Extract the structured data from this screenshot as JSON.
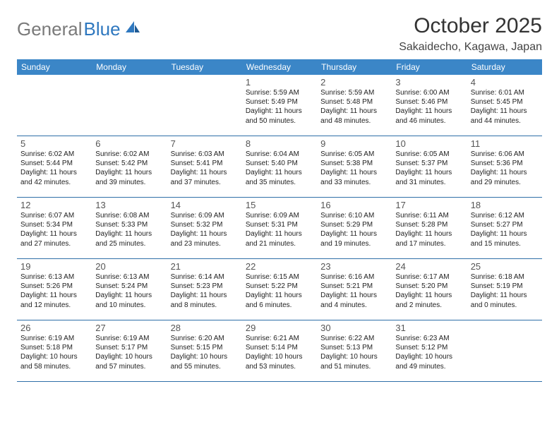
{
  "logo": {
    "text1": "General",
    "text2": "Blue"
  },
  "title": "October 2025",
  "location": "Sakaidecho, Kagawa, Japan",
  "dayNames": [
    "Sunday",
    "Monday",
    "Tuesday",
    "Wednesday",
    "Thursday",
    "Friday",
    "Saturday"
  ],
  "colors": {
    "headerBg": "#3b86c7",
    "headerText": "#ffffff",
    "weekBorder": "#2f6fa8",
    "logoGray": "#7a7a7a",
    "logoBlue": "#2f78bf"
  },
  "weeks": [
    [
      {
        "num": "",
        "sunrise": "",
        "sunset": "",
        "daylight1": "",
        "daylight2": ""
      },
      {
        "num": "",
        "sunrise": "",
        "sunset": "",
        "daylight1": "",
        "daylight2": ""
      },
      {
        "num": "",
        "sunrise": "",
        "sunset": "",
        "daylight1": "",
        "daylight2": ""
      },
      {
        "num": "1",
        "sunrise": "Sunrise: 5:59 AM",
        "sunset": "Sunset: 5:49 PM",
        "daylight1": "Daylight: 11 hours",
        "daylight2": "and 50 minutes."
      },
      {
        "num": "2",
        "sunrise": "Sunrise: 5:59 AM",
        "sunset": "Sunset: 5:48 PM",
        "daylight1": "Daylight: 11 hours",
        "daylight2": "and 48 minutes."
      },
      {
        "num": "3",
        "sunrise": "Sunrise: 6:00 AM",
        "sunset": "Sunset: 5:46 PM",
        "daylight1": "Daylight: 11 hours",
        "daylight2": "and 46 minutes."
      },
      {
        "num": "4",
        "sunrise": "Sunrise: 6:01 AM",
        "sunset": "Sunset: 5:45 PM",
        "daylight1": "Daylight: 11 hours",
        "daylight2": "and 44 minutes."
      }
    ],
    [
      {
        "num": "5",
        "sunrise": "Sunrise: 6:02 AM",
        "sunset": "Sunset: 5:44 PM",
        "daylight1": "Daylight: 11 hours",
        "daylight2": "and 42 minutes."
      },
      {
        "num": "6",
        "sunrise": "Sunrise: 6:02 AM",
        "sunset": "Sunset: 5:42 PM",
        "daylight1": "Daylight: 11 hours",
        "daylight2": "and 39 minutes."
      },
      {
        "num": "7",
        "sunrise": "Sunrise: 6:03 AM",
        "sunset": "Sunset: 5:41 PM",
        "daylight1": "Daylight: 11 hours",
        "daylight2": "and 37 minutes."
      },
      {
        "num": "8",
        "sunrise": "Sunrise: 6:04 AM",
        "sunset": "Sunset: 5:40 PM",
        "daylight1": "Daylight: 11 hours",
        "daylight2": "and 35 minutes."
      },
      {
        "num": "9",
        "sunrise": "Sunrise: 6:05 AM",
        "sunset": "Sunset: 5:38 PM",
        "daylight1": "Daylight: 11 hours",
        "daylight2": "and 33 minutes."
      },
      {
        "num": "10",
        "sunrise": "Sunrise: 6:05 AM",
        "sunset": "Sunset: 5:37 PM",
        "daylight1": "Daylight: 11 hours",
        "daylight2": "and 31 minutes."
      },
      {
        "num": "11",
        "sunrise": "Sunrise: 6:06 AM",
        "sunset": "Sunset: 5:36 PM",
        "daylight1": "Daylight: 11 hours",
        "daylight2": "and 29 minutes."
      }
    ],
    [
      {
        "num": "12",
        "sunrise": "Sunrise: 6:07 AM",
        "sunset": "Sunset: 5:34 PM",
        "daylight1": "Daylight: 11 hours",
        "daylight2": "and 27 minutes."
      },
      {
        "num": "13",
        "sunrise": "Sunrise: 6:08 AM",
        "sunset": "Sunset: 5:33 PM",
        "daylight1": "Daylight: 11 hours",
        "daylight2": "and 25 minutes."
      },
      {
        "num": "14",
        "sunrise": "Sunrise: 6:09 AM",
        "sunset": "Sunset: 5:32 PM",
        "daylight1": "Daylight: 11 hours",
        "daylight2": "and 23 minutes."
      },
      {
        "num": "15",
        "sunrise": "Sunrise: 6:09 AM",
        "sunset": "Sunset: 5:31 PM",
        "daylight1": "Daylight: 11 hours",
        "daylight2": "and 21 minutes."
      },
      {
        "num": "16",
        "sunrise": "Sunrise: 6:10 AM",
        "sunset": "Sunset: 5:29 PM",
        "daylight1": "Daylight: 11 hours",
        "daylight2": "and 19 minutes."
      },
      {
        "num": "17",
        "sunrise": "Sunrise: 6:11 AM",
        "sunset": "Sunset: 5:28 PM",
        "daylight1": "Daylight: 11 hours",
        "daylight2": "and 17 minutes."
      },
      {
        "num": "18",
        "sunrise": "Sunrise: 6:12 AM",
        "sunset": "Sunset: 5:27 PM",
        "daylight1": "Daylight: 11 hours",
        "daylight2": "and 15 minutes."
      }
    ],
    [
      {
        "num": "19",
        "sunrise": "Sunrise: 6:13 AM",
        "sunset": "Sunset: 5:26 PM",
        "daylight1": "Daylight: 11 hours",
        "daylight2": "and 12 minutes."
      },
      {
        "num": "20",
        "sunrise": "Sunrise: 6:13 AM",
        "sunset": "Sunset: 5:24 PM",
        "daylight1": "Daylight: 11 hours",
        "daylight2": "and 10 minutes."
      },
      {
        "num": "21",
        "sunrise": "Sunrise: 6:14 AM",
        "sunset": "Sunset: 5:23 PM",
        "daylight1": "Daylight: 11 hours",
        "daylight2": "and 8 minutes."
      },
      {
        "num": "22",
        "sunrise": "Sunrise: 6:15 AM",
        "sunset": "Sunset: 5:22 PM",
        "daylight1": "Daylight: 11 hours",
        "daylight2": "and 6 minutes."
      },
      {
        "num": "23",
        "sunrise": "Sunrise: 6:16 AM",
        "sunset": "Sunset: 5:21 PM",
        "daylight1": "Daylight: 11 hours",
        "daylight2": "and 4 minutes."
      },
      {
        "num": "24",
        "sunrise": "Sunrise: 6:17 AM",
        "sunset": "Sunset: 5:20 PM",
        "daylight1": "Daylight: 11 hours",
        "daylight2": "and 2 minutes."
      },
      {
        "num": "25",
        "sunrise": "Sunrise: 6:18 AM",
        "sunset": "Sunset: 5:19 PM",
        "daylight1": "Daylight: 11 hours",
        "daylight2": "and 0 minutes."
      }
    ],
    [
      {
        "num": "26",
        "sunrise": "Sunrise: 6:19 AM",
        "sunset": "Sunset: 5:18 PM",
        "daylight1": "Daylight: 10 hours",
        "daylight2": "and 58 minutes."
      },
      {
        "num": "27",
        "sunrise": "Sunrise: 6:19 AM",
        "sunset": "Sunset: 5:17 PM",
        "daylight1": "Daylight: 10 hours",
        "daylight2": "and 57 minutes."
      },
      {
        "num": "28",
        "sunrise": "Sunrise: 6:20 AM",
        "sunset": "Sunset: 5:15 PM",
        "daylight1": "Daylight: 10 hours",
        "daylight2": "and 55 minutes."
      },
      {
        "num": "29",
        "sunrise": "Sunrise: 6:21 AM",
        "sunset": "Sunset: 5:14 PM",
        "daylight1": "Daylight: 10 hours",
        "daylight2": "and 53 minutes."
      },
      {
        "num": "30",
        "sunrise": "Sunrise: 6:22 AM",
        "sunset": "Sunset: 5:13 PM",
        "daylight1": "Daylight: 10 hours",
        "daylight2": "and 51 minutes."
      },
      {
        "num": "31",
        "sunrise": "Sunrise: 6:23 AM",
        "sunset": "Sunset: 5:12 PM",
        "daylight1": "Daylight: 10 hours",
        "daylight2": "and 49 minutes."
      },
      {
        "num": "",
        "sunrise": "",
        "sunset": "",
        "daylight1": "",
        "daylight2": ""
      }
    ]
  ]
}
